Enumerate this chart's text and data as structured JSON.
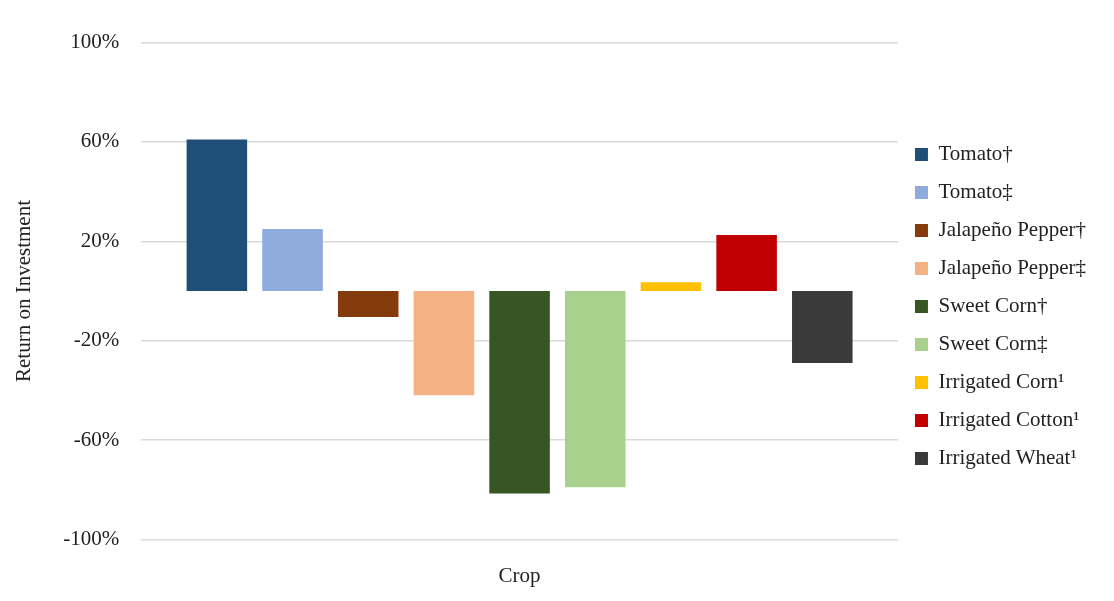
{
  "chart_data": {
    "type": "bar",
    "xlabel": "Crop",
    "ylabel": "Return on Investment",
    "categories": [
      null
    ],
    "series": [
      {
        "name": "Tomato†",
        "color": "#1f4e79",
        "values": [
          61
        ]
      },
      {
        "name": "Tomato‡",
        "color": "#8faadc",
        "values": [
          25
        ]
      },
      {
        "name": "Jalapeño Pepper†",
        "color": "#843c0c",
        "values": [
          -10.5
        ]
      },
      {
        "name": "Jalapeño Pepper‡",
        "color": "#f4b183",
        "values": [
          -42
        ]
      },
      {
        "name": "Sweet Corn†",
        "color": "#375623",
        "values": [
          -81.5
        ]
      },
      {
        "name": "Sweet Corn‡",
        "color": "#a9d18e",
        "values": [
          -79
        ]
      },
      {
        "name": "Irrigated Corn¹",
        "color": "#ffc000",
        "values": [
          3.5
        ]
      },
      {
        "name": "Irrigated Cotton¹",
        "color": "#c00000",
        "values": [
          22.5
        ]
      },
      {
        "name": "Irrigated Wheat¹",
        "color": "#3a3a3a",
        "values": [
          -29
        ]
      }
    ],
    "ylim": [
      -100,
      100
    ],
    "yticks": [
      {
        "value": -100,
        "label": "-100%"
      },
      {
        "value": -60,
        "label": "-60%"
      },
      {
        "value": -20,
        "label": "-20%"
      },
      {
        "value": 20,
        "label": "20%"
      },
      {
        "value": 60,
        "label": "60%"
      },
      {
        "value": 100,
        "label": "100%"
      }
    ],
    "grid": "y",
    "legend": "right"
  }
}
